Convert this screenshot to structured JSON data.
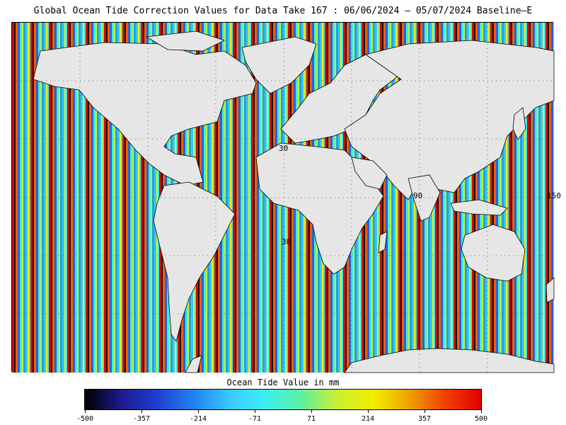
{
  "title": "Global Ocean Tide Correction Values for Data Take 167 : 06/06/2024 – 05/07/2024 Baseline–E",
  "map": {
    "grid_labels": [
      "30",
      "30",
      "90",
      "150"
    ],
    "land_color": "#e6e6e6"
  },
  "colorbar": {
    "title": "Ocean Tide Value in mm",
    "ticks": [
      "-500",
      "-357",
      "-214",
      "-71",
      "71",
      "214",
      "357",
      "500"
    ],
    "min": -500,
    "max": 500,
    "colors": [
      "#000000",
      "#1a1a8c",
      "#1f3fd0",
      "#1f7ff0",
      "#38c8ff",
      "#3cf0f0",
      "#5cf0a0",
      "#c8f030",
      "#f0f000",
      "#f0a000",
      "#f04000",
      "#e00000"
    ]
  }
}
